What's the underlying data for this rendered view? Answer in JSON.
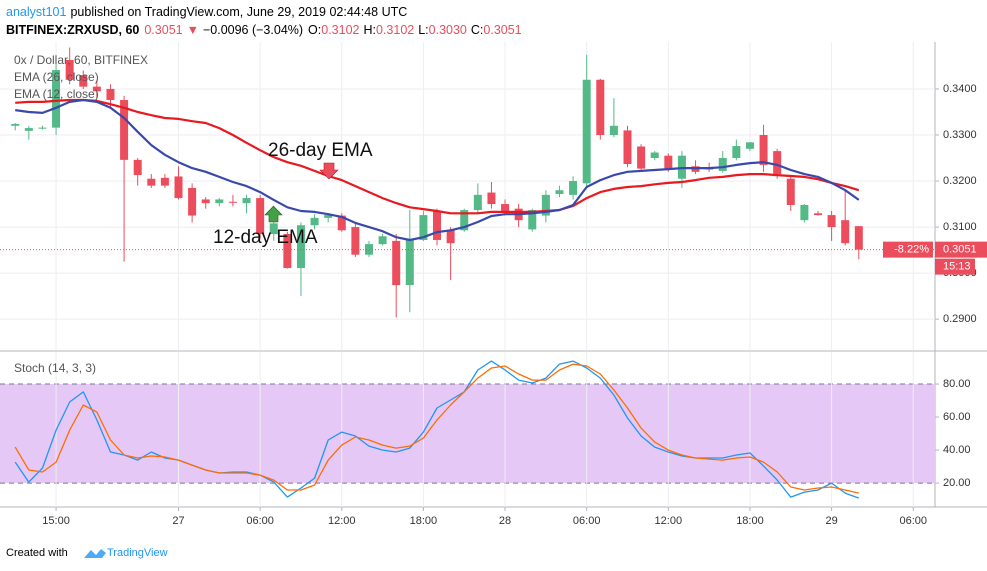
{
  "header": {
    "author": "analyst101",
    "published": "published on TradingView.com, June 29, 2019 02:44:48 UTC",
    "symbol": "BITFINEX:ZRXUSD, 60",
    "last": "0.3051",
    "change_arrow": "▼",
    "change": "−0.0096 (−3.04%)",
    "o_label": "O:",
    "o": "0.3102",
    "h_label": "H:",
    "h": "0.3102",
    "l_label": "L:",
    "l": "0.3030",
    "c_label": "C:",
    "c": "0.3051"
  },
  "chart_data": [
    {
      "type": "candlestick",
      "title": "0x / Dollar, 60, BITFINEX",
      "up_color": "#53b987",
      "down_color": "#eb4d5c",
      "open": [
        0.332,
        0.3309,
        0.3316,
        0.3316,
        0.3463,
        0.343,
        0.3405,
        0.34,
        0.3376,
        0.3246,
        0.3205,
        0.3207,
        0.321,
        0.3185,
        0.316,
        0.3152,
        0.3155,
        0.3152,
        0.3163,
        0.3085,
        0.3085,
        0.3011,
        0.3104,
        0.312,
        0.3125,
        0.31,
        0.304,
        0.3063,
        0.307,
        0.2974,
        0.3072,
        0.3135,
        0.3093,
        0.3093,
        0.3137,
        0.3175,
        0.315,
        0.314,
        0.3095,
        0.3125,
        0.3172,
        0.317,
        0.3195,
        0.342,
        0.33,
        0.331,
        0.3275,
        0.325,
        0.3255,
        0.3205,
        0.3232,
        0.323,
        0.3222,
        0.325,
        0.327,
        0.33,
        0.3265,
        0.3205,
        0.3115,
        0.313,
        0.3126,
        0.3115,
        0.3102
      ],
      "high": [
        0.3326,
        0.332,
        0.332,
        0.3474,
        0.349,
        0.344,
        0.342,
        0.341,
        0.3385,
        0.325,
        0.3215,
        0.3215,
        0.3232,
        0.3195,
        0.3165,
        0.3163,
        0.317,
        0.317,
        0.317,
        0.3115,
        0.309,
        0.311,
        0.3128,
        0.313,
        0.313,
        0.311,
        0.307,
        0.3085,
        0.3085,
        0.3137,
        0.3135,
        0.314,
        0.31,
        0.314,
        0.3195,
        0.3198,
        0.316,
        0.315,
        0.314,
        0.318,
        0.319,
        0.321,
        0.3474,
        0.3422,
        0.338,
        0.332,
        0.328,
        0.3265,
        0.326,
        0.3265,
        0.3245,
        0.324,
        0.3265,
        0.329,
        0.3285,
        0.3322,
        0.327,
        0.321,
        0.315,
        0.3135,
        0.3135,
        0.318,
        0.3102
      ],
      "low": [
        0.331,
        0.329,
        0.3312,
        0.33,
        0.341,
        0.34,
        0.338,
        0.336,
        0.3025,
        0.319,
        0.3185,
        0.3185,
        0.316,
        0.311,
        0.314,
        0.3145,
        0.3145,
        0.313,
        0.3075,
        0.307,
        0.301,
        0.295,
        0.3095,
        0.311,
        0.309,
        0.3035,
        0.3035,
        0.306,
        0.2904,
        0.2915,
        0.307,
        0.306,
        0.2985,
        0.309,
        0.313,
        0.314,
        0.3125,
        0.31,
        0.309,
        0.311,
        0.3165,
        0.316,
        0.3185,
        0.329,
        0.3295,
        0.323,
        0.3225,
        0.3245,
        0.322,
        0.3185,
        0.3215,
        0.322,
        0.3218,
        0.3245,
        0.3265,
        0.322,
        0.3205,
        0.3135,
        0.311,
        0.3125,
        0.307,
        0.306,
        0.303
      ],
      "close": [
        0.3324,
        0.3315,
        0.3316,
        0.3441,
        0.342,
        0.3405,
        0.3395,
        0.3376,
        0.3246,
        0.3213,
        0.319,
        0.319,
        0.3163,
        0.3125,
        0.3152,
        0.316,
        0.3153,
        0.3163,
        0.3085,
        0.3108,
        0.3011,
        0.3104,
        0.312,
        0.3126,
        0.3093,
        0.304,
        0.3063,
        0.308,
        0.2974,
        0.3072,
        0.3126,
        0.3072,
        0.3065,
        0.3137,
        0.317,
        0.315,
        0.3135,
        0.3115,
        0.3137,
        0.317,
        0.318,
        0.32,
        0.342,
        0.33,
        0.332,
        0.3237,
        0.3227,
        0.3262,
        0.3225,
        0.3255,
        0.322,
        0.3225,
        0.325,
        0.3276,
        0.3284,
        0.3235,
        0.3215,
        0.3148,
        0.3148,
        0.3126,
        0.31,
        0.3065,
        0.3051
      ],
      "series": [
        {
          "name": "EMA (26, close)",
          "color": "#e8191f",
          "values": [
            0.337,
            0.3372,
            0.3372,
            0.3374,
            0.3376,
            0.3376,
            0.3374,
            0.3367,
            0.3359,
            0.335,
            0.3343,
            0.3337,
            0.3335,
            0.333,
            0.3326,
            0.3315,
            0.33,
            0.3283,
            0.3267,
            0.3252,
            0.3241,
            0.3233,
            0.3222,
            0.3211,
            0.3202,
            0.3189,
            0.3176,
            0.3163,
            0.3152,
            0.3143,
            0.3139,
            0.3135,
            0.313,
            0.313,
            0.313,
            0.3133,
            0.3133,
            0.3133,
            0.3133,
            0.3135,
            0.3137,
            0.3146,
            0.3163,
            0.3176,
            0.3183,
            0.3187,
            0.3189,
            0.3193,
            0.3196,
            0.3198,
            0.3202,
            0.3207,
            0.3209,
            0.3213,
            0.3215,
            0.3215,
            0.3213,
            0.3211,
            0.3209,
            0.3204,
            0.3196,
            0.3189,
            0.318
          ]
        },
        {
          "name": "EMA (12, close)",
          "color": "#3949ab",
          "values": [
            0.3354,
            0.335,
            0.3348,
            0.3359,
            0.3372,
            0.3376,
            0.3372,
            0.3359,
            0.3337,
            0.3307,
            0.3278,
            0.3257,
            0.3241,
            0.3228,
            0.322,
            0.3209,
            0.3198,
            0.3189,
            0.3176,
            0.3159,
            0.3143,
            0.3135,
            0.3133,
            0.3128,
            0.3122,
            0.3109,
            0.31,
            0.3091,
            0.3078,
            0.3072,
            0.3078,
            0.3089,
            0.3093,
            0.31,
            0.3111,
            0.3124,
            0.3128,
            0.3128,
            0.313,
            0.3133,
            0.3137,
            0.3148,
            0.3187,
            0.3202,
            0.3213,
            0.322,
            0.3222,
            0.3224,
            0.3226,
            0.3228,
            0.3228,
            0.3228,
            0.323,
            0.3235,
            0.3239,
            0.3241,
            0.3235,
            0.3224,
            0.3215,
            0.3209,
            0.3196,
            0.318,
            0.3159
          ]
        }
      ],
      "annotations": [
        "26-day EMA",
        "12-day EMA"
      ],
      "change_label": "-8.22%",
      "countdown": "15:13",
      "xlim": [
        -1.12,
        67.6
      ],
      "xticks": [
        {
          "value": 3,
          "label": "15:00"
        },
        {
          "value": 12,
          "label": "27"
        },
        {
          "value": 18,
          "label": "06:00"
        },
        {
          "value": 24,
          "label": "12:00"
        },
        {
          "value": 30,
          "label": "18:00"
        },
        {
          "value": 36,
          "label": "28"
        },
        {
          "value": 42,
          "label": "06:00"
        },
        {
          "value": 48,
          "label": "12:00"
        },
        {
          "value": 54,
          "label": "18:00"
        },
        {
          "value": 60,
          "label": "29"
        },
        {
          "value": 66,
          "label": "06:00"
        }
      ],
      "ylim": [
        0.2833,
        0.3502
      ],
      "yticks": [
        {
          "value": 0.29,
          "label": "0.2900"
        },
        {
          "value": 0.3,
          "label": "0.3000"
        },
        {
          "value": 0.31,
          "label": "0.3100"
        },
        {
          "value": 0.32,
          "label": "0.3200"
        },
        {
          "value": 0.33,
          "label": "0.3300"
        },
        {
          "value": 0.34,
          "label": "0.3400"
        }
      ],
      "grid": true
    },
    {
      "type": "line",
      "title": "Stoch (14, 3, 3)",
      "band_color": "#e6c8f7",
      "bands": [
        80,
        20
      ],
      "series": [
        {
          "color": "#2196f3",
          "values": [
            32.7,
            20.6,
            29.1,
            52.1,
            69.1,
            75.2,
            58.2,
            38.8,
            37.0,
            33.9,
            38.8,
            35.2,
            33.9,
            30.9,
            27.9,
            26.1,
            26.7,
            26.7,
            24.8,
            20.6,
            11.5,
            17.0,
            23.0,
            46.1,
            50.9,
            48.5,
            42.4,
            40.0,
            38.8,
            41.2,
            50.9,
            65.5,
            70.3,
            75.2,
            88.5,
            93.9,
            88.5,
            82.4,
            80.6,
            83.6,
            92.1,
            93.9,
            89.7,
            83.6,
            73.3,
            59.4,
            48.5,
            41.8,
            38.8,
            36.4,
            35.2,
            35.2,
            35.2,
            37.0,
            38.2,
            30.3,
            21.8,
            11.5,
            14.5,
            15.8,
            20.0,
            13.9,
            10.9
          ]
        },
        {
          "color": "#ff6d00",
          "values": [
            41.8,
            27.9,
            26.7,
            32.7,
            52.1,
            67.3,
            63.0,
            46.1,
            37.0,
            35.2,
            36.4,
            35.8,
            33.9,
            30.9,
            27.9,
            26.1,
            26.1,
            26.1,
            24.8,
            21.8,
            15.8,
            15.8,
            18.8,
            33.9,
            43.0,
            47.9,
            46.1,
            43.0,
            41.2,
            42.4,
            47.3,
            58.2,
            67.3,
            75.2,
            83.6,
            89.7,
            90.9,
            86.1,
            82.4,
            82.4,
            88.5,
            92.1,
            90.9,
            86.1,
            76.4,
            65.5,
            53.3,
            44.8,
            40.0,
            37.0,
            35.2,
            34.5,
            33.9,
            35.2,
            35.8,
            32.7,
            26.7,
            17.6,
            15.8,
            17.0,
            17.6,
            15.8,
            13.9
          ]
        }
      ],
      "ylim": [
        5.5,
        99.4
      ],
      "yticks": [
        {
          "value": 20,
          "label": "20.00"
        },
        {
          "value": 40,
          "label": "40.00"
        },
        {
          "value": 60,
          "label": "60.00"
        },
        {
          "value": 80,
          "label": "80.00"
        }
      ],
      "grid": true
    }
  ],
  "footer": {
    "prefix": "Created with",
    "brand": "TradingView"
  }
}
